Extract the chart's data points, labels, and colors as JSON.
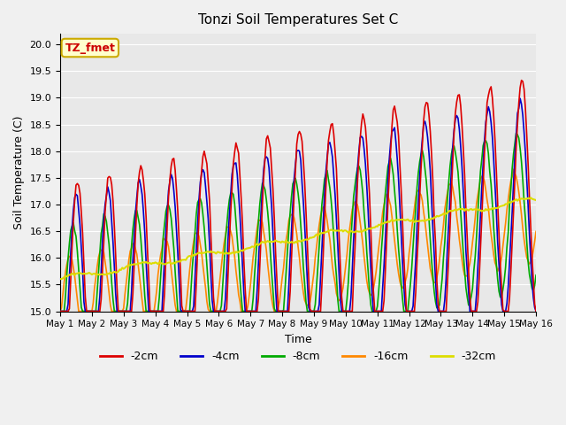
{
  "title": "Tonzi Soil Temperatures Set C",
  "xlabel": "Time",
  "ylabel": "Soil Temperature (C)",
  "ylim": [
    15.0,
    20.2
  ],
  "xlim": [
    0,
    15
  ],
  "annotation_text": "TZ_fmet",
  "annotation_color": "#cc0000",
  "annotation_bg": "#ffffcc",
  "annotation_border": "#ccaa00",
  "colors": {
    "-2cm": "#dd0000",
    "-4cm": "#0000cc",
    "-8cm": "#00aa00",
    "-16cm": "#ff8800",
    "-32cm": "#dddd00"
  },
  "legend_labels": [
    "-2cm",
    "-4cm",
    "-8cm",
    "-16cm",
    "-32cm"
  ],
  "bg_color": "#e8e8e8",
  "fig_bg_color": "#f0f0f0",
  "grid_color": "#ffffff",
  "n_points": 361,
  "days": 15
}
